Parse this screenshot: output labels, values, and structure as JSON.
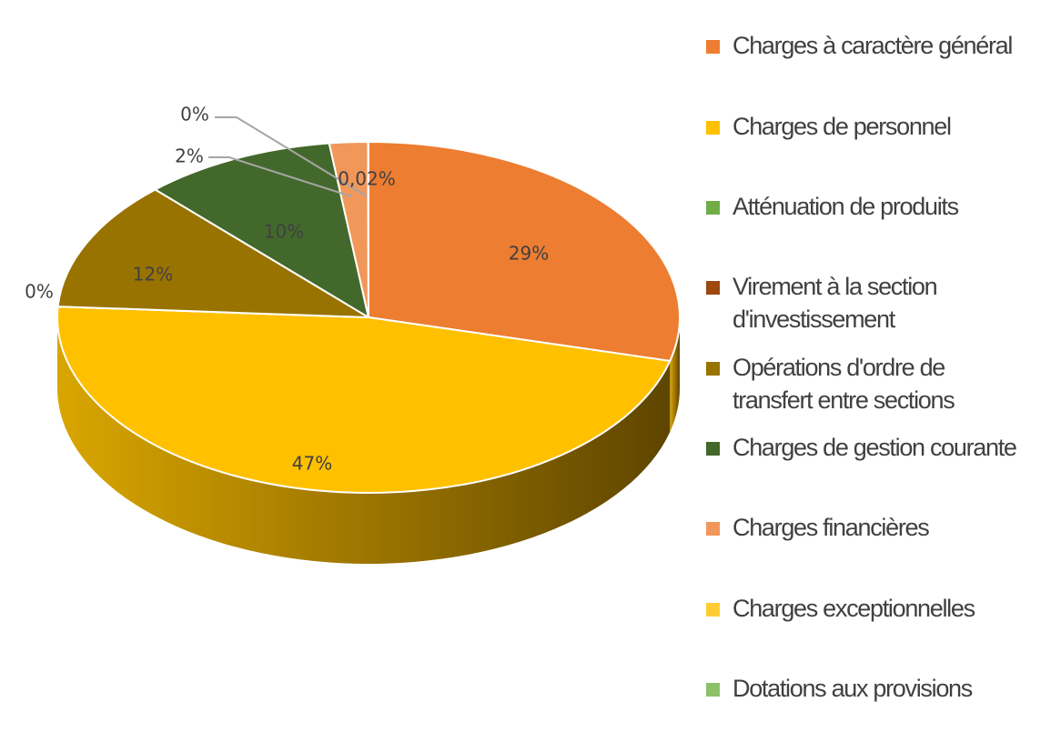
{
  "chart_data": {
    "type": "pie",
    "style": "3d",
    "title": "",
    "slices": [
      {
        "label": "Charges à caractère général",
        "value": 29,
        "value_label": "29%",
        "color": "#ED7D31"
      },
      {
        "label": "Charges de personnel",
        "value": 47,
        "value_label": "47%",
        "color": "#FFC000"
      },
      {
        "label": "Atténuation de produits",
        "value": 0,
        "value_label": "0%",
        "color": "#70AD47"
      },
      {
        "label": "Virement à la section d'investissement",
        "value": 0,
        "value_label": "",
        "color": "#9E480E"
      },
      {
        "label": "Opérations d'ordre de transfert entre sections",
        "value": 12,
        "value_label": "12%",
        "color": "#997300"
      },
      {
        "label": "Charges de gestion courante",
        "value": 10,
        "value_label": "10%",
        "color": "#43682B"
      },
      {
        "label": "Charges financières",
        "value": 2,
        "value_label": "2%",
        "color": "#F1975A"
      },
      {
        "label": "Charges exceptionnelles",
        "value": 0,
        "value_label": "0%",
        "color": "#FFCD33"
      },
      {
        "label": "Dotations aux provisions",
        "value": 0.02,
        "value_label": "0,02%",
        "color": "#8CC168"
      }
    ],
    "legend_position": "right"
  },
  "legend": {
    "lines": [
      [
        "Charges à caractère général"
      ],
      [
        "Charges de personnel"
      ],
      [
        "Atténuation de produits"
      ],
      [
        "Virement à la section",
        "d'investissement"
      ],
      [
        "Opérations d'ordre de",
        "transfert entre sections"
      ],
      [
        "Charges de gestion courante"
      ],
      [
        "Charges financières"
      ],
      [
        "Charges exceptionnelles"
      ],
      [
        "Dotations aux provisions"
      ]
    ]
  }
}
